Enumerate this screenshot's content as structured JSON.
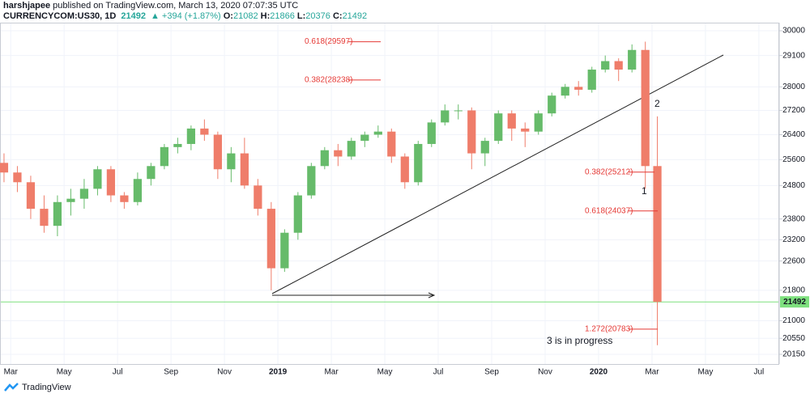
{
  "header": {
    "author": "harshjapee",
    "published": "published on TradingView.com, March 13, 2020 07:07:35 UTC",
    "symbol": "CURRENCYCOM:US30, 1D",
    "price": "21492",
    "change": "+394 (+1.87%)",
    "ohlc": [
      {
        "label": "O:",
        "value": "21082"
      },
      {
        "label": "H:",
        "value": "21866"
      },
      {
        "label": "L:",
        "value": "20376"
      },
      {
        "label": "C:",
        "value": "21492"
      }
    ]
  },
  "chart_data": {
    "type": "candlestick",
    "log_scale": true,
    "grid": true,
    "up_color": "#66bb6a",
    "down_color": "#ef7d6a",
    "xlim": [
      1.6,
      30.7
    ],
    "xticks": [
      {
        "value": 2,
        "label": "Mar"
      },
      {
        "value": 4,
        "label": "May"
      },
      {
        "value": 6,
        "label": "Jul"
      },
      {
        "value": 8,
        "label": "Sep"
      },
      {
        "value": 10,
        "label": "Nov"
      },
      {
        "value": 12,
        "label": "2019"
      },
      {
        "value": 14,
        "label": "Mar"
      },
      {
        "value": 16,
        "label": "May"
      },
      {
        "value": 18,
        "label": "Jul"
      },
      {
        "value": 20,
        "label": "Sep"
      },
      {
        "value": 22,
        "label": "Nov"
      },
      {
        "value": 24,
        "label": "2020"
      },
      {
        "value": 26,
        "label": "Mar"
      },
      {
        "value": 28,
        "label": "May"
      },
      {
        "value": 30,
        "label": "Jul"
      }
    ],
    "ylim": [
      20010,
      30240
    ],
    "yticks": [
      30000,
      29100,
      28000,
      27200,
      26400,
      25600,
      24800,
      23800,
      23200,
      22600,
      21800,
      21000,
      20550,
      20150
    ],
    "current_price": 21492,
    "current_price_color": "#7ee07e",
    "x": [
      1.75,
      2.25,
      2.75,
      3.25,
      3.75,
      4.25,
      4.75,
      5.25,
      5.75,
      6.25,
      6.75,
      7.25,
      7.75,
      8.25,
      8.75,
      9.25,
      9.75,
      10.25,
      10.75,
      11.25,
      11.75,
      12.25,
      12.75,
      13.25,
      13.75,
      14.25,
      14.75,
      15.25,
      15.75,
      16.25,
      16.75,
      17.25,
      17.75,
      18.25,
      18.75,
      19.25,
      19.75,
      20.25,
      20.75,
      21.25,
      21.75,
      22.25,
      22.75,
      23.25,
      23.75,
      24.25,
      24.75,
      25.25,
      25.75,
      26.2
    ],
    "open": [
      25500,
      25200,
      24900,
      24100,
      23600,
      24300,
      24400,
      24700,
      25300,
      24500,
      24300,
      25000,
      25400,
      26000,
      26100,
      26600,
      26400,
      25300,
      25800,
      24800,
      24100,
      22400,
      23400,
      24500,
      25400,
      25900,
      25700,
      26200,
      26400,
      26500,
      25700,
      24900,
      26100,
      26800,
      27200,
      27200,
      25800,
      26200,
      27100,
      26600,
      26500,
      27100,
      27700,
      28000,
      27900,
      28600,
      28900,
      28600,
      29300,
      25400
    ],
    "high": [
      25800,
      25400,
      25100,
      24500,
      24500,
      24700,
      25000,
      25400,
      25400,
      24600,
      25200,
      25500,
      26100,
      26300,
      26700,
      26900,
      26500,
      26000,
      26300,
      25000,
      24300,
      23500,
      24600,
      25500,
      26000,
      26100,
      26300,
      26500,
      26700,
      26600,
      25800,
      26200,
      26900,
      27400,
      27400,
      27300,
      26300,
      27200,
      27200,
      26800,
      27200,
      27800,
      28100,
      28200,
      28700,
      29100,
      29000,
      29500,
      29600,
      27000
    ],
    "low": [
      24900,
      24600,
      23800,
      23400,
      23300,
      23900,
      24100,
      24500,
      24300,
      24100,
      24200,
      24800,
      25300,
      25800,
      25900,
      26200,
      25000,
      24900,
      24700,
      23900,
      21800,
      22300,
      23200,
      24400,
      25300,
      25400,
      25600,
      26000,
      26300,
      25500,
      24700,
      24800,
      26000,
      26700,
      26900,
      25300,
      25400,
      26100,
      26200,
      26000,
      26400,
      27000,
      27600,
      27700,
      27800,
      28500,
      28200,
      28500,
      24700,
      20376
    ],
    "close": [
      25200,
      24900,
      24100,
      23600,
      24300,
      24400,
      24700,
      25300,
      24500,
      24300,
      25000,
      25400,
      26000,
      26100,
      26600,
      26400,
      25300,
      25800,
      24800,
      24100,
      22400,
      23400,
      24500,
      25400,
      25900,
      25700,
      26200,
      26400,
      26500,
      25700,
      24900,
      26100,
      26800,
      27200,
      27200,
      25800,
      26200,
      27100,
      26600,
      26500,
      27100,
      27700,
      28000,
      27900,
      28600,
      28900,
      28600,
      29300,
      25400,
      21492
    ],
    "levels": [
      {
        "label": "0.618(29597)",
        "value": 29597
      },
      {
        "label": "0.382(28238)",
        "value": 28238
      },
      {
        "label": "0.382(25212)",
        "value": 25212
      },
      {
        "label": "0.618(24037)",
        "value": 24037
      },
      {
        "label": "1.272(20783)",
        "value": 20783
      }
    ],
    "annotations": [
      "1",
      "2",
      "3 is in progress"
    ]
  },
  "footer": "TradingView"
}
